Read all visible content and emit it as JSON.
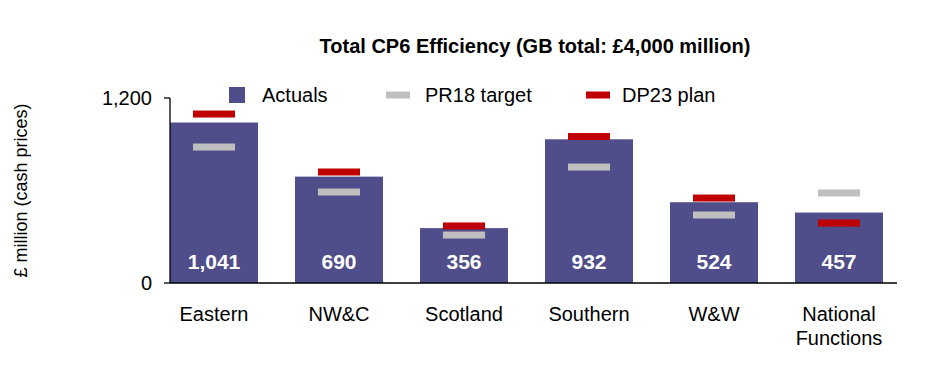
{
  "chart_data": {
    "type": "bar",
    "title": "Total CP6 Efficiency (GB total: £4,000 million)",
    "y_label": "£ million (cash prices)",
    "categories": [
      "Eastern",
      "NW&C",
      "Scotland",
      "Southern",
      "W&W",
      "National Functions"
    ],
    "series": [
      {
        "name": "Actuals",
        "type": "bar",
        "color": "#4f4d8a",
        "data_labels": true,
        "values": [
          1041,
          690,
          356,
          932,
          524,
          457
        ],
        "value_labels": [
          "1,041",
          "690",
          "356",
          "932",
          "524",
          "457"
        ]
      },
      {
        "name": "PR18 target",
        "type": "scatter",
        "marker": "dash",
        "color": "#bfbfbf",
        "values": [
          882,
          590,
          311,
          752,
          441,
          584
        ]
      },
      {
        "name": "DP23 plan",
        "type": "scatter",
        "marker": "dash",
        "color": "#c00000",
        "values": [
          1096,
          720,
          370,
          950,
          551,
          389
        ]
      }
    ],
    "ylim": [
      0,
      1200
    ],
    "yticks": [
      0,
      {
        "value": 1200,
        "label": "1,200"
      }
    ],
    "grid": false,
    "legend": "top"
  }
}
